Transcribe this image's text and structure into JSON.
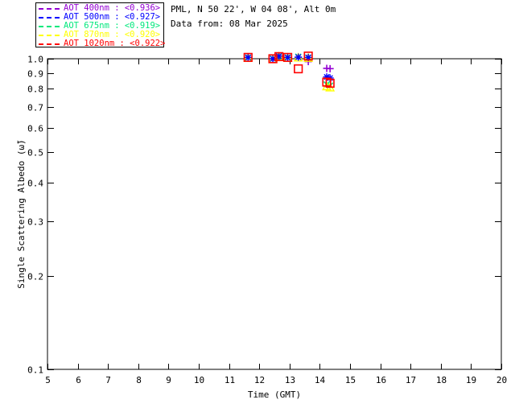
{
  "header": {
    "title_line1": "PML, N 50 22', W 04 08', Alt 0m",
    "title_line2": "Data from: 08 Mar 2025"
  },
  "legend": {
    "items": [
      {
        "label": "AOT  400nm : <0.936>",
        "color": "#9400D3",
        "marker": "plus"
      },
      {
        "label": "AOT  500nm : <0.927>",
        "color": "#0000FF",
        "marker": "asterisk"
      },
      {
        "label": "AOT  675nm : <0.919>",
        "color": "#00E87C",
        "marker": "cross"
      },
      {
        "label": "AOT  870nm : <0.920>",
        "color": "#FFFF00",
        "marker": "triangle"
      },
      {
        "label": "AOT 1020nm : <0.922>",
        "color": "#FF0000",
        "marker": "square"
      }
    ]
  },
  "chart_data": {
    "type": "scatter",
    "title": "PML, N 50 22', W 04 08', Alt 0m",
    "subtitle": "Data from: 08 Mar 2025",
    "xlabel": "Time (GMT)",
    "ylabel": "Single Scattering Albedo (ω̃)",
    "xlim": [
      5,
      20
    ],
    "ylim": [
      0.1,
      1.0
    ],
    "yscale": "log",
    "grid": false,
    "legend_position": "top-left-outside",
    "xticks": [
      5,
      6,
      7,
      8,
      9,
      10,
      11,
      12,
      13,
      14,
      15,
      16,
      17,
      18,
      19,
      20
    ],
    "yticks": [
      0.1,
      0.2,
      0.3,
      0.4,
      0.5,
      0.6,
      0.7,
      0.8,
      0.9,
      1.0
    ],
    "x": [
      11.63,
      12.45,
      12.65,
      12.94,
      13.29,
      13.62,
      14.23,
      14.34
    ],
    "series": [
      {
        "name": "AOT 400nm",
        "mean": 0.936,
        "color": "#9400D3",
        "marker": "plus",
        "values": [
          1.01,
          1.0,
          1.02,
          1.01,
          1.01,
          0.979,
          0.931,
          0.929
        ]
      },
      {
        "name": "AOT 500nm",
        "mean": 0.927,
        "color": "#0000FF",
        "marker": "asterisk",
        "values": [
          1.01,
          1.0,
          1.02,
          1.01,
          1.012,
          1.01,
          0.874,
          0.867
        ]
      },
      {
        "name": "AOT 675nm",
        "mean": 0.919,
        "color": "#00E87C",
        "marker": "cross",
        "values": [
          1.008,
          1.0,
          1.018,
          1.008,
          1.015,
          1.008,
          0.826,
          0.819
        ]
      },
      {
        "name": "AOT 870nm",
        "mean": 0.92,
        "color": "#FFFF00",
        "marker": "triangle",
        "values": [
          1.005,
          0.996,
          1.015,
          1.005,
          1.008,
          1.005,
          0.814,
          0.807
        ]
      },
      {
        "name": "AOT 1020nm",
        "mean": 0.922,
        "color": "#FF0000",
        "marker": "square",
        "values": [
          1.01,
          1.0,
          1.016,
          1.01,
          0.928,
          1.02,
          0.841,
          0.834
        ]
      }
    ],
    "draw_order": [
      0,
      2,
      3,
      1,
      4
    ]
  },
  "geometry_note": "plot frame left 59, right 623, top 73, bottom 459"
}
